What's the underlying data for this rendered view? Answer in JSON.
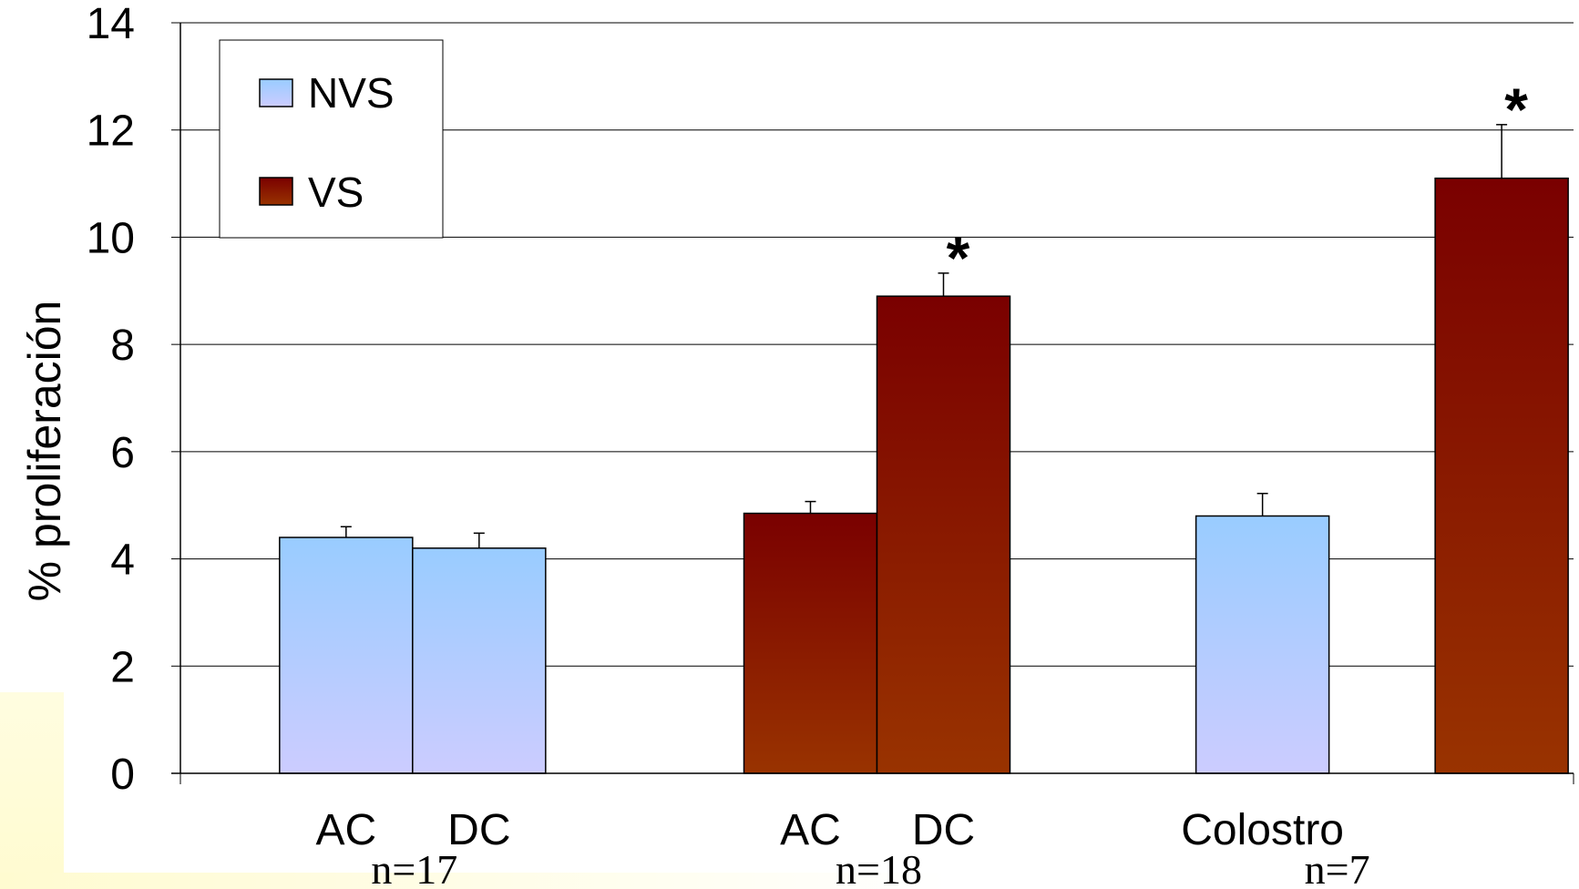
{
  "chart_data": {
    "type": "bar",
    "ylabel": "% proliferación",
    "ylim": [
      0,
      14
    ],
    "yticks": [
      "0",
      "2",
      "4",
      "6",
      "8",
      "10",
      "12",
      "14"
    ],
    "grid": true,
    "legend_position": "top-left",
    "series": [
      {
        "name": "NVS",
        "color_top": "#99ccff",
        "color_bottom": "#ccccff"
      },
      {
        "name": "VS",
        "color_top": "#7a0000",
        "color_bottom": "#993300"
      }
    ],
    "groups": [
      {
        "n_label": "n=17",
        "bars": [
          {
            "category": "AC",
            "series": "NVS",
            "value": 4.4,
            "error": 0.2,
            "star": false
          },
          {
            "category": "DC",
            "series": "NVS",
            "value": 4.2,
            "error": 0.28,
            "star": false
          }
        ]
      },
      {
        "n_label": "n=18",
        "bars": [
          {
            "category": "AC",
            "series": "VS",
            "value": 4.85,
            "error": 0.22,
            "star": false
          },
          {
            "category": "DC",
            "series": "VS",
            "value": 8.9,
            "error": 0.43,
            "star": true
          }
        ]
      },
      {
        "n_label": "n=7",
        "bars": [
          {
            "category": "Colostro",
            "series": "NVS",
            "value": 4.8,
            "error": 0.42,
            "star": false
          },
          {
            "category": "",
            "series": "VS",
            "value": 11.1,
            "error": 1.0,
            "star": true
          }
        ]
      }
    ],
    "category_labels": [
      "AC",
      "DC",
      "AC",
      "DC",
      "Colostro"
    ],
    "n_labels": [
      "n=17",
      "n=18",
      "n=7"
    ],
    "significance_marker": "*"
  }
}
